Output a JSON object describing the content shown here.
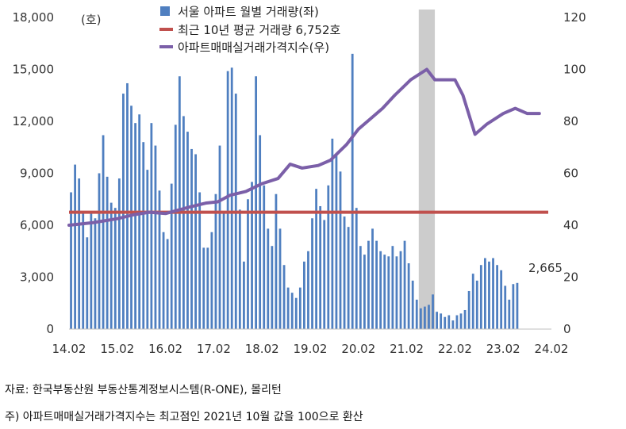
{
  "chart_data": {
    "type": "bar+line",
    "left_axis": {
      "unit_label": "(호)",
      "ylim": [
        0,
        18000
      ],
      "ticks": [
        "0",
        "3,000",
        "6,000",
        "9,000",
        "12,000",
        "15,000",
        "18,000"
      ]
    },
    "right_axis": {
      "ylim": [
        0,
        120
      ],
      "ticks": [
        "0",
        "20",
        "40",
        "60",
        "80",
        "100",
        "120"
      ]
    },
    "x_ticks": [
      "14.02",
      "15.02",
      "16.02",
      "17.02",
      "18.02",
      "19.02",
      "20.02",
      "21.02",
      "22.02",
      "23.02",
      "24.02"
    ],
    "legend": [
      {
        "label": "서울 아파트 월별 거래량(좌)",
        "kind": "bar",
        "color": "#4f7fc0"
      },
      {
        "label": "최근 10년 평균 거래량 6,752호",
        "kind": "line",
        "color": "#c0504d"
      },
      {
        "label": "아파트매매실거래가격지수(우)",
        "kind": "line",
        "color": "#7b5fa8"
      }
    ],
    "average_line": {
      "value": 6752
    },
    "highlight_band": {
      "from_month": 87,
      "to_month": 91,
      "color": "#cccccc"
    },
    "last_value_label": "2,665",
    "bar_series": {
      "name": "서울 아파트 월별 거래량(좌)",
      "start": "2014-02",
      "values": [
        7900,
        9500,
        8700,
        6700,
        5300,
        6800,
        6400,
        9000,
        11200,
        8800,
        7300,
        7000,
        8700,
        13600,
        14200,
        12900,
        11900,
        12400,
        10800,
        9200,
        11900,
        10600,
        8000,
        5600,
        5200,
        8400,
        11800,
        14600,
        12300,
        11400,
        10400,
        10100,
        7900,
        4700,
        4700,
        5600,
        7800,
        10600,
        6800,
        14900,
        15100,
        13600,
        6900,
        3900,
        7500,
        8500,
        14600,
        11200,
        8300,
        5800,
        4800,
        7800,
        5800,
        3700,
        2400,
        2100,
        1800,
        2400,
        3900,
        4500,
        6400,
        8100,
        7100,
        6300,
        8300,
        11000,
        10100,
        9100,
        6500,
        5900,
        15900,
        7000,
        4800,
        4300,
        5100,
        5800,
        5100,
        4500,
        4300,
        4200,
        4800,
        4200,
        4500,
        5100,
        3800,
        2800,
        1700,
        1200,
        1300,
        1400,
        2000,
        1000,
        900,
        700,
        800,
        500,
        800,
        900,
        1100,
        2200,
        3200,
        2800,
        3700,
        4100,
        3900,
        4100,
        3700,
        3400,
        2500,
        1700,
        2600,
        2665
      ]
    },
    "index_series": {
      "name": "아파트매매실거래가격지수(우)",
      "points": [
        [
          0,
          40
        ],
        [
          6,
          41
        ],
        [
          12,
          42.5
        ],
        [
          16,
          44
        ],
        [
          20,
          45
        ],
        [
          24,
          44.5
        ],
        [
          30,
          47
        ],
        [
          34,
          48.5
        ],
        [
          37,
          49
        ],
        [
          40,
          51.5
        ],
        [
          44,
          53
        ],
        [
          48,
          56
        ],
        [
          52,
          58
        ],
        [
          55,
          63.5
        ],
        [
          58,
          62
        ],
        [
          62,
          63
        ],
        [
          65,
          65
        ],
        [
          69,
          71
        ],
        [
          72,
          77
        ],
        [
          75,
          81
        ],
        [
          78,
          85
        ],
        [
          81,
          90
        ],
        [
          85,
          96
        ],
        [
          89,
          100
        ],
        [
          91,
          96
        ],
        [
          96,
          96
        ],
        [
          98,
          90
        ],
        [
          101,
          75
        ],
        [
          104,
          79
        ],
        [
          108,
          83
        ],
        [
          111,
          85
        ],
        [
          114,
          83
        ],
        [
          117,
          83
        ]
      ]
    }
  },
  "notes": {
    "source": "자료: 한국부동산원 부동산통계정보시스템(R-ONE), 몰리턴",
    "footnote": "주) 아파트매매실거래가격지수는 최고점인 2021년 10월 값을 100으로 환산"
  }
}
